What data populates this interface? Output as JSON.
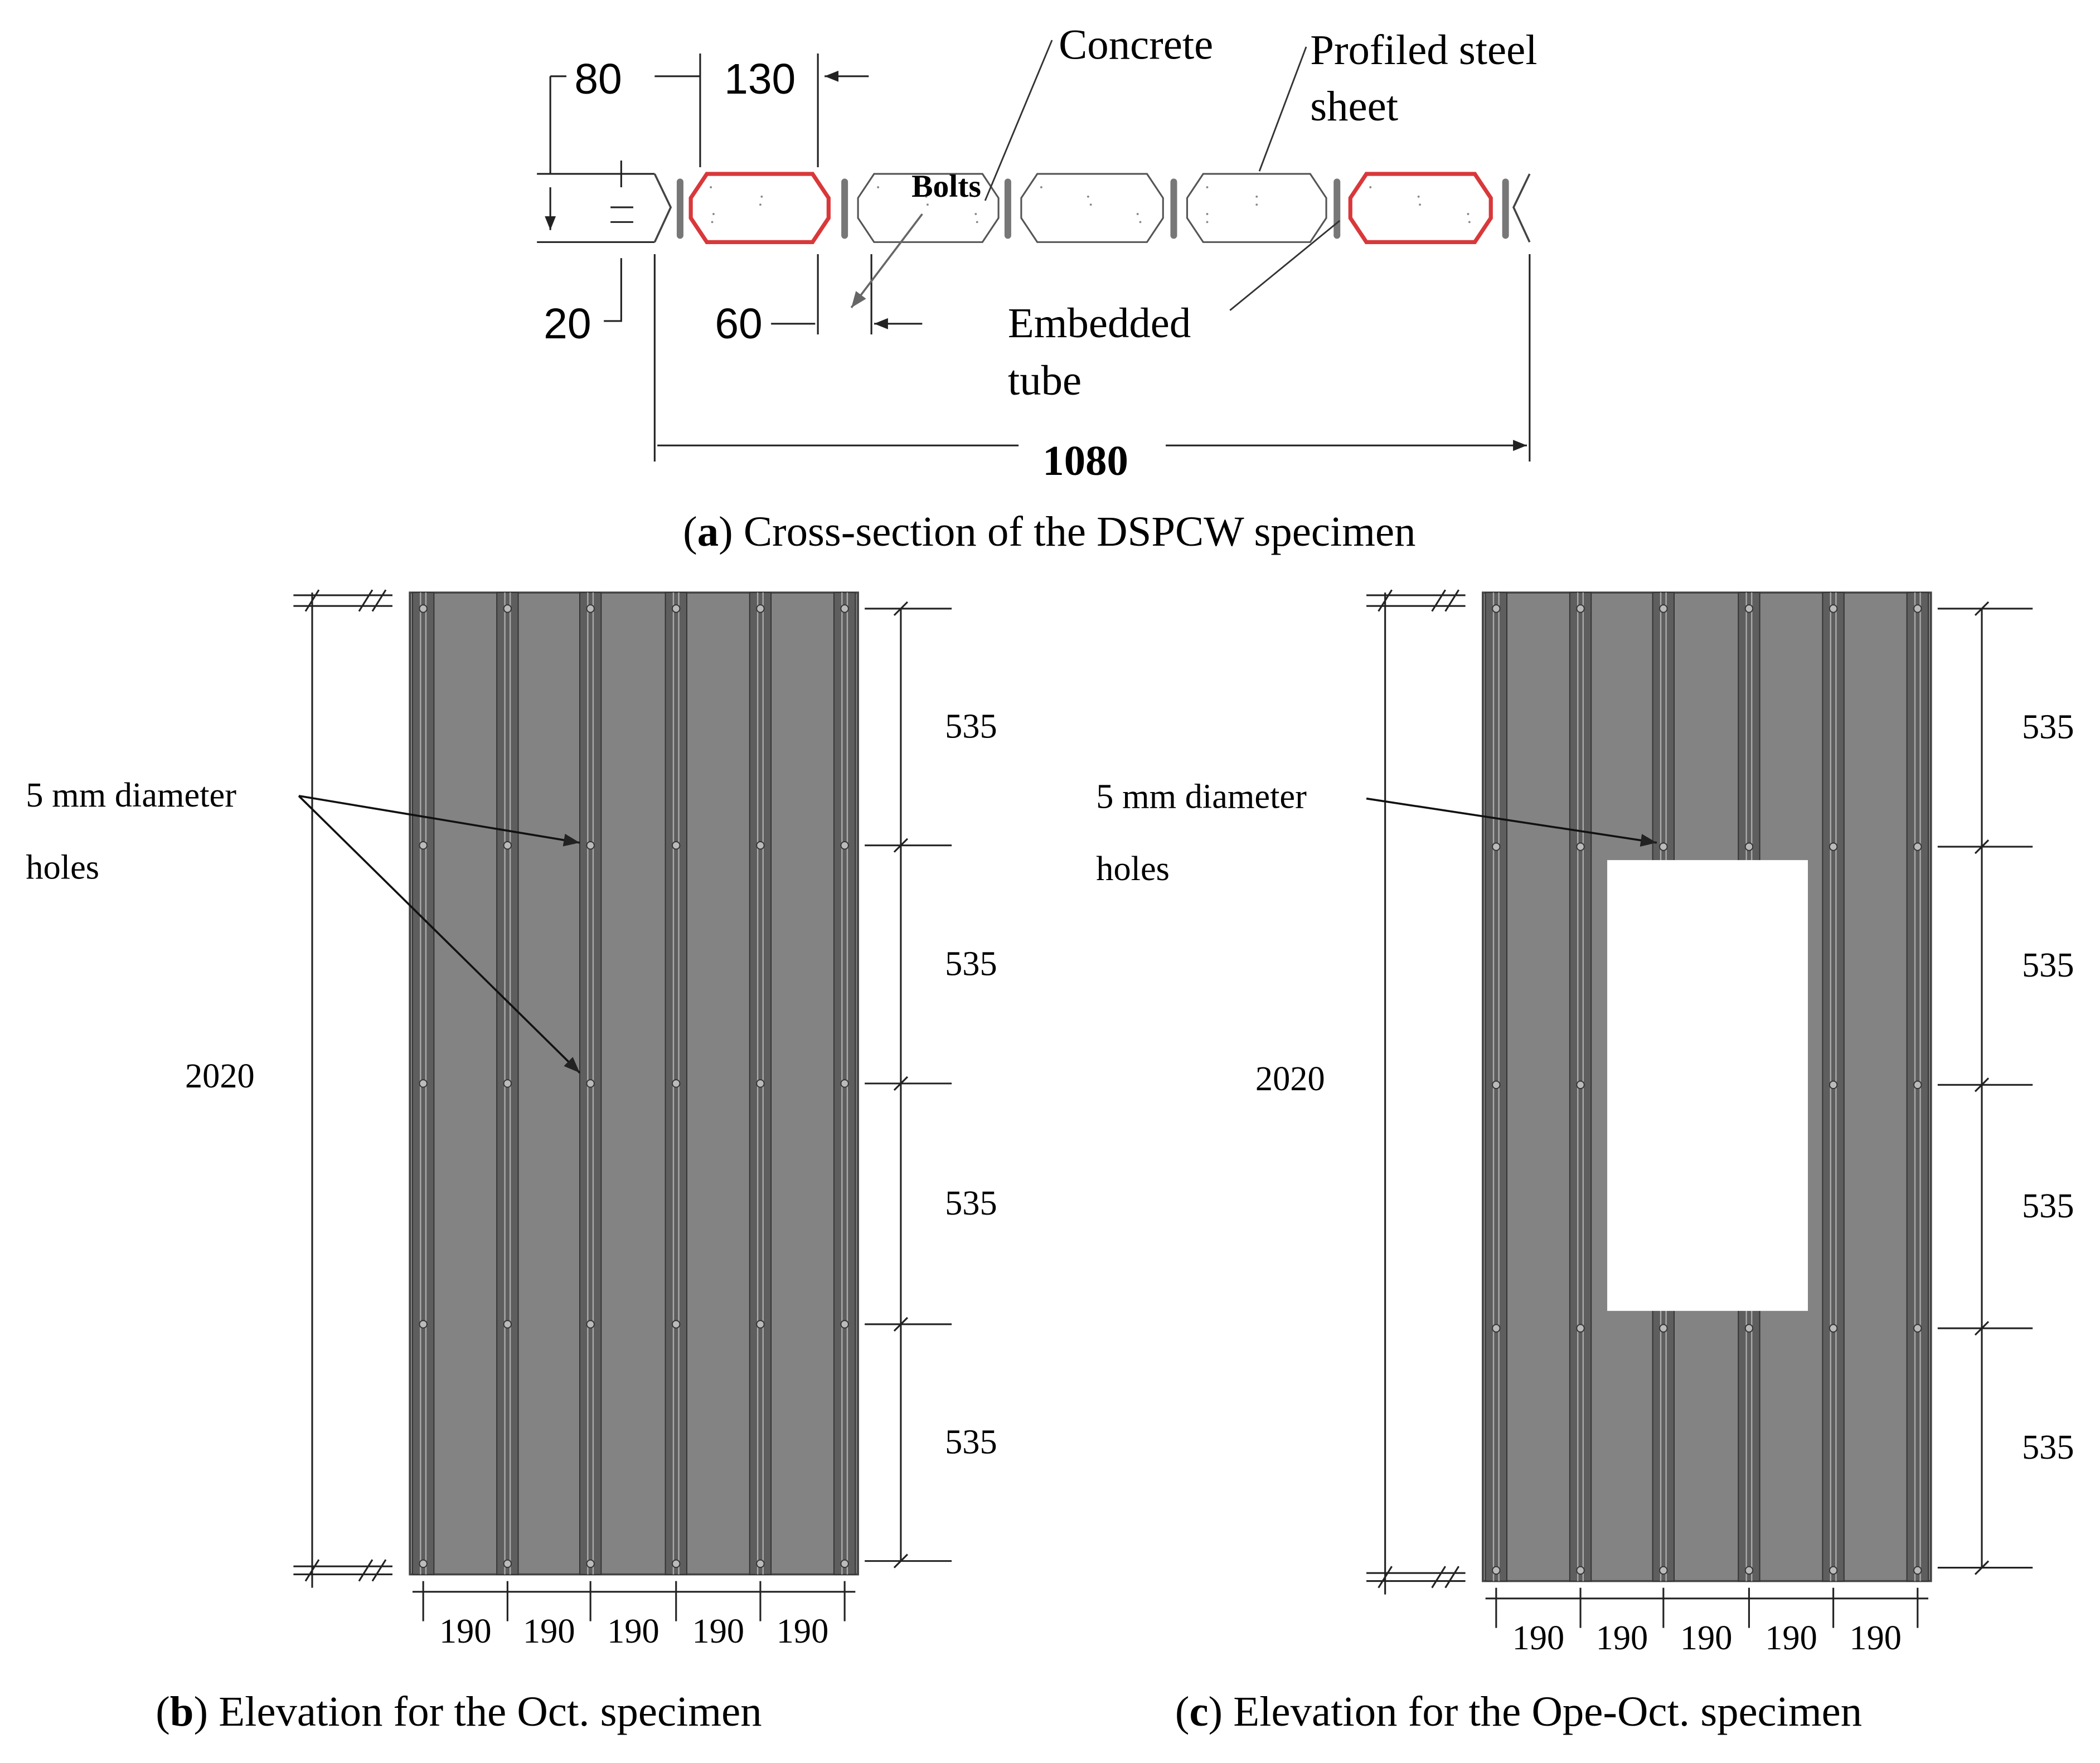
{
  "panel_a": {
    "dimensions": {
      "top_left": "80",
      "top_mid": "130",
      "left": "20",
      "bottom_mid": "60",
      "overall": "1080"
    },
    "labels": {
      "concrete": "Concrete",
      "sheet_line1": "Profiled steel",
      "sheet_line2": "sheet",
      "bolts": "Bolts",
      "tube_line1": "Embedded",
      "tube_line2": "tube"
    },
    "caption": [
      "(",
      "a",
      ") Cross-section of the DSPCW specimen"
    ]
  },
  "panel_b": {
    "holes_line1": "5 mm diameter",
    "holes_line2": "holes",
    "height": "2020",
    "segments": [
      "535",
      "535",
      "535",
      "535"
    ],
    "widths": [
      "190",
      "190",
      "190",
      "190",
      "190"
    ],
    "caption": [
      "(",
      "b",
      ") Elevation for the Oct. specimen"
    ]
  },
  "panel_c": {
    "holes_line1": "5 mm diameter",
    "holes_line2": "holes",
    "height": "2020",
    "segments": [
      "535",
      "535",
      "535",
      "535"
    ],
    "widths": [
      "190",
      "190",
      "190",
      "190",
      "190"
    ],
    "caption": [
      "(",
      "c",
      ") Elevation for the Ope-Oct. specimen"
    ]
  }
}
